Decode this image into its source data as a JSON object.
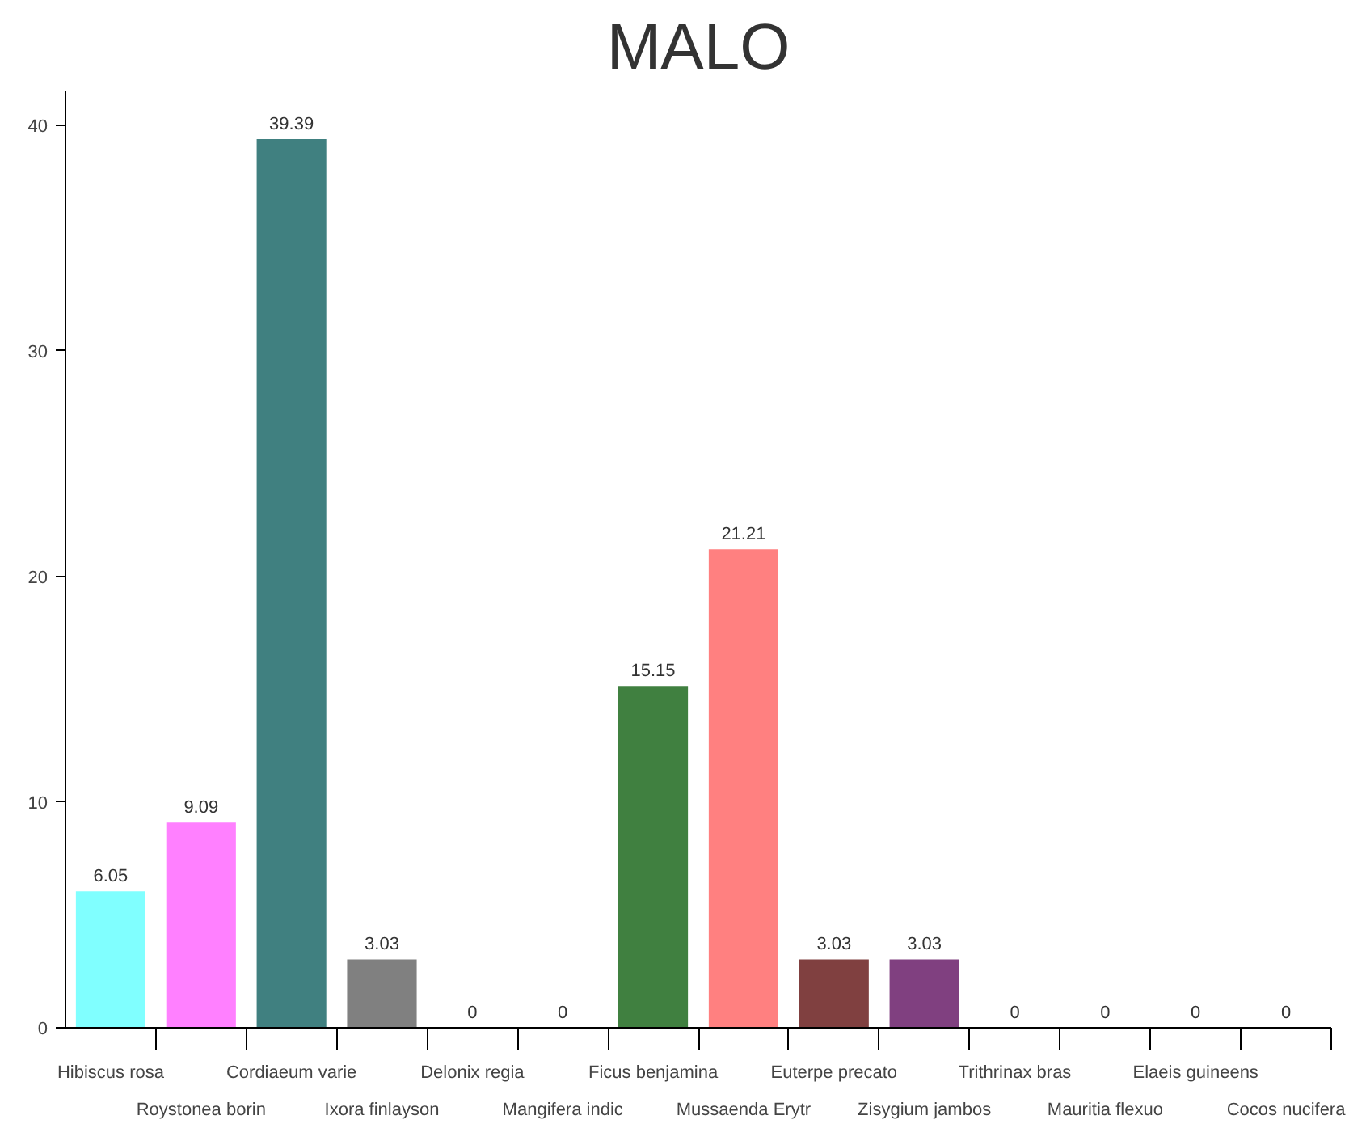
{
  "chart_data": {
    "type": "bar",
    "title": "MALO",
    "categories": [
      "Hibiscus rosa",
      "Roystonea borin",
      "Cordiaeum varie",
      "Ixora finlayson",
      "Delonix regia",
      "Mangifera indic",
      "Ficus benjamina",
      "Mussaenda Erytr",
      "Euterpe precato",
      "Zisygium jambos",
      "Trithrinax bras",
      "Mauritia flexuo",
      "Elaeis guineens",
      "Cocos nucifera"
    ],
    "values": [
      6.05,
      9.09,
      39.39,
      3.03,
      0,
      0,
      15.15,
      21.21,
      3.03,
      3.03,
      0,
      0,
      0,
      0
    ],
    "colors": [
      "#80ffff",
      "#ff80ff",
      "#408080",
      "#808080",
      "#808080",
      "#808080",
      "#408040",
      "#ff8080",
      "#804040",
      "#804080",
      "#808080",
      "#808080",
      "#808080",
      "#808080"
    ],
    "ylim": [
      0,
      41.5
    ],
    "yticks": [
      0,
      10,
      20,
      30,
      40
    ],
    "data_labels": true,
    "grid": false
  }
}
